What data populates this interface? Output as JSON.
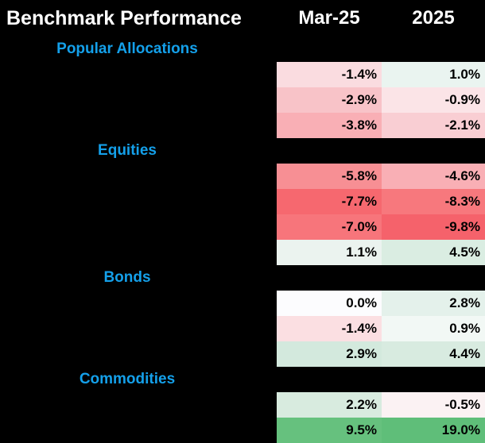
{
  "title": "Benchmark Performance",
  "columns": {
    "mar": "Mar-25",
    "ytd": "2025"
  },
  "palette": {
    "page_bg": "#000000",
    "header_text": "#FFFFFF",
    "section_label": "#14A0EA",
    "cell_text": "#000000",
    "negative_strong": "#F5626B",
    "positive_strong": "#5FBE79"
  },
  "sections": [
    {
      "label": "Popular Allocations",
      "rows": [
        {
          "mar": "-1.4%",
          "ytd": "1.0%",
          "mar_bg": "#FADCE0",
          "ytd_bg": "#EAF4F0"
        },
        {
          "mar": "-2.9%",
          "ytd": "-0.9%",
          "mar_bg": "#F8C3C8",
          "ytd_bg": "#FBE4E7"
        },
        {
          "mar": "-3.8%",
          "ytd": "-2.1%",
          "mar_bg": "#F9AFB5",
          "ytd_bg": "#F9CED3"
        }
      ]
    },
    {
      "label": "Equities",
      "rows": [
        {
          "mar": "-5.8%",
          "ytd": "-4.6%",
          "mar_bg": "#F78F94",
          "ytd_bg": "#F9AFB5"
        },
        {
          "mar": "-7.7%",
          "ytd": "-8.3%",
          "mar_bg": "#F6686F",
          "ytd_bg": "#F7787D"
        },
        {
          "mar": "-7.0%",
          "ytd": "-9.8%",
          "mar_bg": "#F7757B",
          "ytd_bg": "#F5626B"
        },
        {
          "mar": "1.1%",
          "ytd": "4.5%",
          "mar_bg": "#EBF3EF",
          "ytd_bg": "#DAEDE2"
        }
      ]
    },
    {
      "label": "Bonds",
      "rows": [
        {
          "mar": "0.0%",
          "ytd": "2.8%",
          "mar_bg": "#FCFCFE",
          "ytd_bg": "#E4F1EB"
        },
        {
          "mar": "-1.4%",
          "ytd": "0.9%",
          "mar_bg": "#FBDFE2",
          "ytd_bg": "#F2F8F5"
        },
        {
          "mar": "2.9%",
          "ytd": "4.4%",
          "mar_bg": "#D3E9DD",
          "ytd_bg": "#D8EBE0"
        }
      ]
    },
    {
      "label": "Commodities",
      "rows": [
        {
          "mar": "2.2%",
          "ytd": "-0.5%",
          "mar_bg": "#D8EBDF",
          "ytd_bg": "#FBF2F3"
        },
        {
          "mar": "9.5%",
          "ytd": "19.0%",
          "mar_bg": "#66C17E",
          "ytd_bg": "#5FBE79"
        }
      ]
    }
  ],
  "chart_data": {
    "type": "heatmap",
    "title": "Benchmark Performance",
    "columns": [
      "Mar-25",
      "2025"
    ],
    "legend_position": "none",
    "grid": false,
    "row_groups": [
      {
        "group": "Popular Allocations",
        "values": [
          [
            -1.4,
            1.0
          ],
          [
            -2.9,
            -0.9
          ],
          [
            -3.8,
            -2.1
          ]
        ]
      },
      {
        "group": "Equities",
        "values": [
          [
            -5.8,
            -4.6
          ],
          [
            -7.7,
            -8.3
          ],
          [
            -7.0,
            -9.8
          ],
          [
            1.1,
            4.5
          ]
        ]
      },
      {
        "group": "Bonds",
        "values": [
          [
            0.0,
            2.8
          ],
          [
            -1.4,
            0.9
          ],
          [
            2.9,
            4.4
          ]
        ]
      },
      {
        "group": "Commodities",
        "values": [
          [
            2.2,
            -0.5
          ],
          [
            9.5,
            19.0
          ]
        ]
      }
    ],
    "color_scale": {
      "negative": "#F5626B",
      "neutral": "#FFFFFF",
      "positive": "#5FBE79"
    }
  }
}
